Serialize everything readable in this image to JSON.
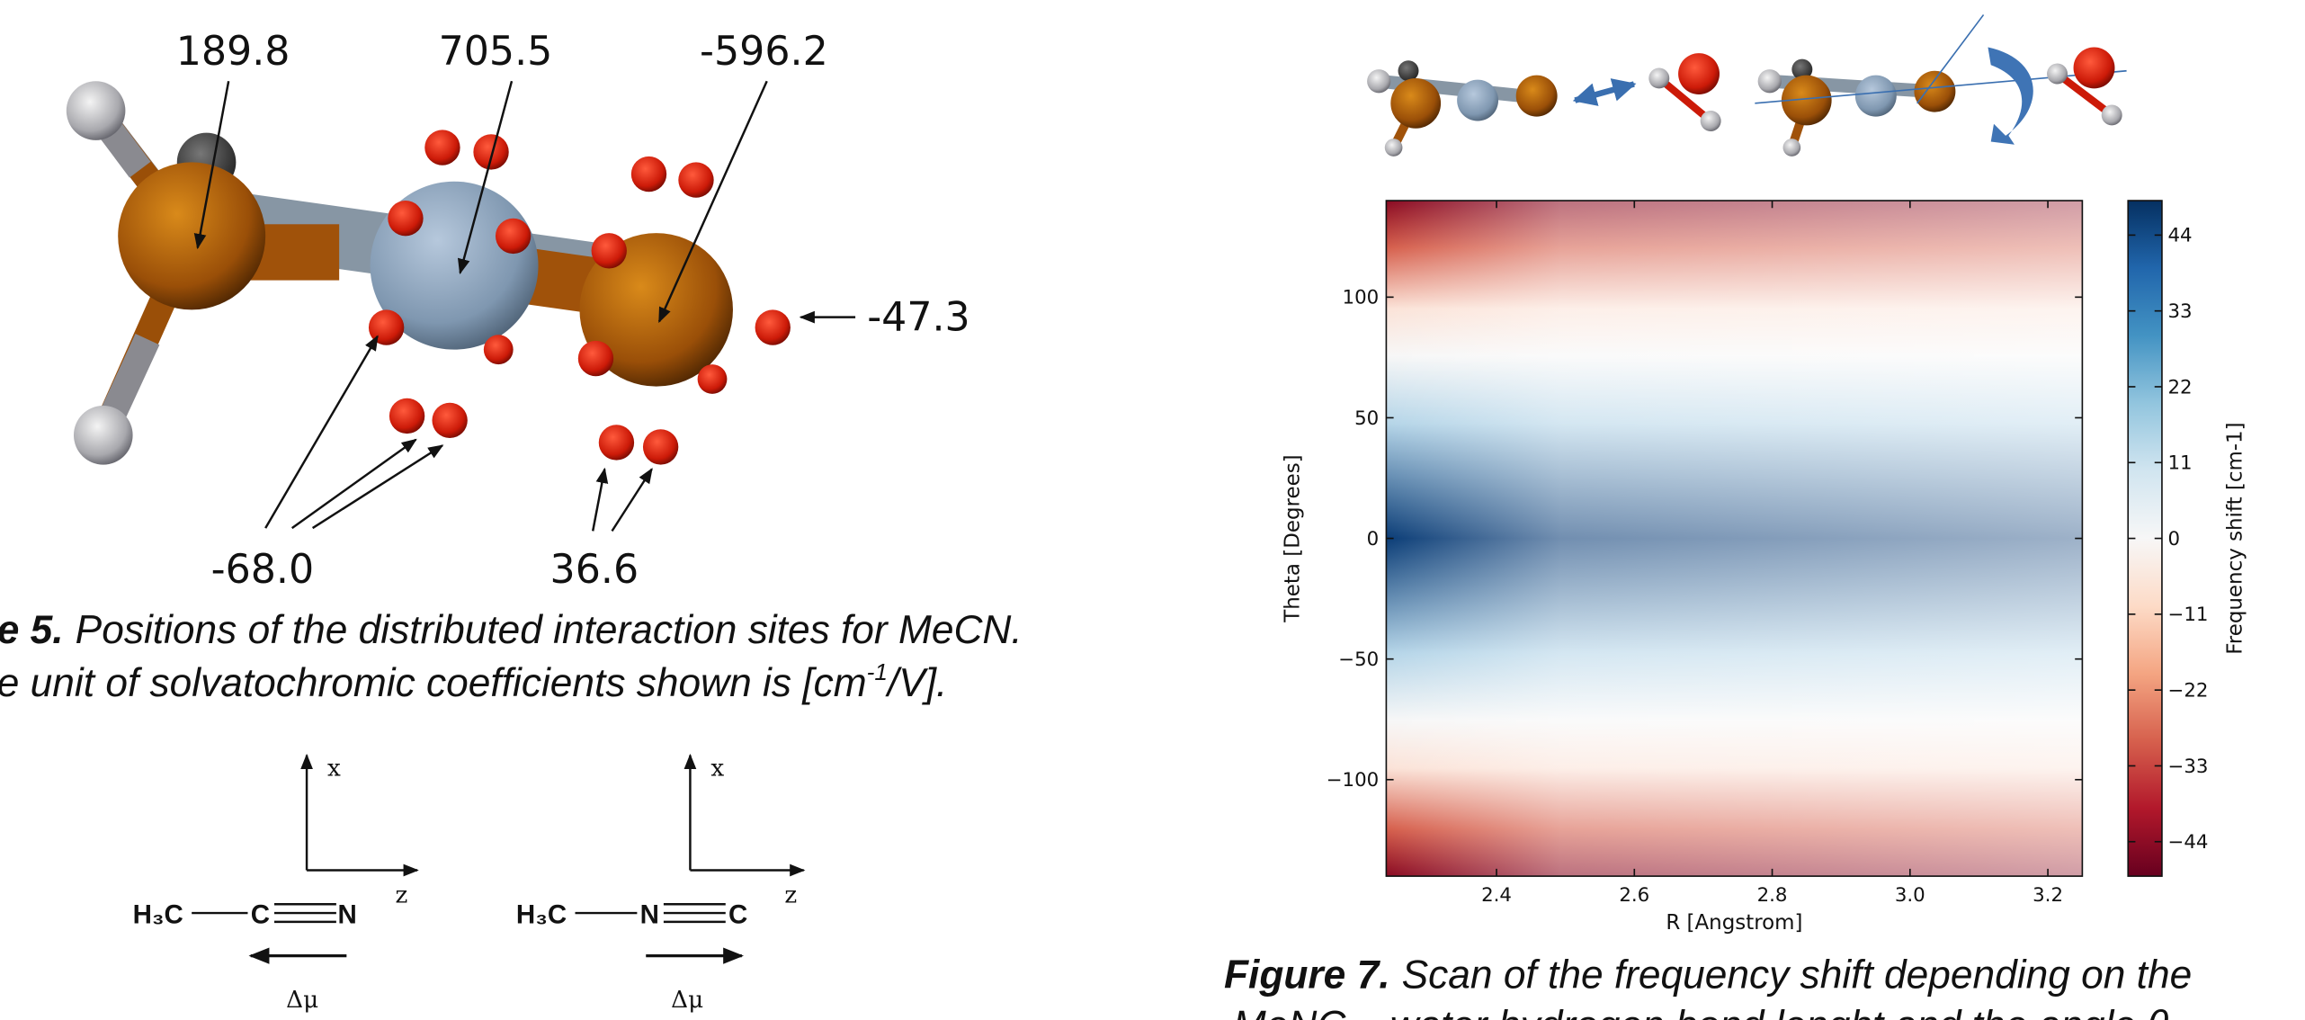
{
  "figure5": {
    "site_labels": [
      "189.8",
      "705.5",
      "-596.2",
      "-47.3",
      "-68.0",
      "36.6"
    ],
    "caption": {
      "number": "e 5.",
      "line1": "Positions of the distributed interaction sites for MeCN.",
      "line2": "e unit of solvatochromic coefficients shown is [cm",
      "superscript": "-1",
      "line2_end": "/V]."
    }
  },
  "lewis_structures": [
    {
      "left": "H₃C",
      "middle": "C",
      "right": "N",
      "axis_x": "x",
      "axis_z": "z",
      "dipole": "Δμ"
    },
    {
      "left": "H₃C",
      "middle": "N",
      "right": "C",
      "axis_x": "x",
      "axis_z": "z",
      "dipole": "Δμ"
    }
  ],
  "chart_data": {
    "type": "heatmap",
    "xlabel": "R [Angstrom]",
    "ylabel": "Theta [Degrees]",
    "xlim": [
      2.24,
      3.25
    ],
    "xticks": [
      2.4,
      2.6,
      2.8,
      {
        "value": 3,
        "label": "3.0"
      },
      3.2
    ],
    "ylim": [
      -140,
      140
    ],
    "yticks": [
      100,
      50,
      0,
      {
        "value": -50,
        "label": "−50"
      },
      {
        "value": -100,
        "label": "−100"
      }
    ],
    "colorbar": {
      "label": "Frequency shift [cm-1]",
      "lim": [
        -49,
        49
      ],
      "ticks": [
        44,
        33,
        22,
        11,
        0,
        {
          "value": -11,
          "label": "−11"
        },
        {
          "value": -22,
          "label": "−22"
        },
        {
          "value": -33,
          "label": "−33"
        },
        {
          "value": -44,
          "label": "−44"
        }
      ],
      "colors": [
        "#053061",
        "#2166ac",
        "#4393c3",
        "#92c5de",
        "#d1e5f0",
        "#f7f7f7",
        "#fddbc7",
        "#f4a582",
        "#d6604d",
        "#b2182b",
        "#67001f"
      ]
    }
  },
  "figure7_caption": {
    "number": "Figure 7.",
    "line1": "Scan of the frequency shift depending on the",
    "line2": "MeNC – water hydrogen bond lenght and the angle θ."
  }
}
